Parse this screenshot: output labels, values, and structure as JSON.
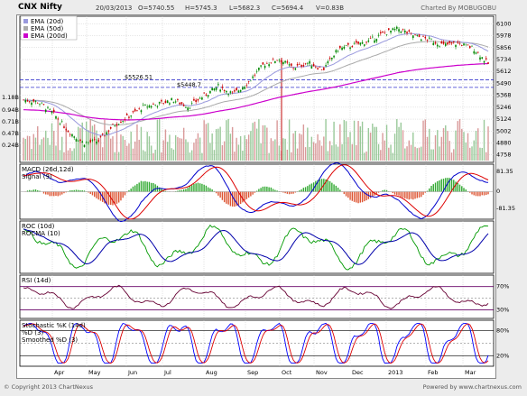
{
  "header": {
    "symbol": "CNX Nifty",
    "date": "20/03/2013",
    "open": "O=5740.55",
    "high": "H=5745.3",
    "low": "L=5682.3",
    "close": "C=5694.4",
    "volume": "V=0.83B",
    "credit": "Charted By MOBUGOBU"
  },
  "footer": {
    "copyright": "© Copyright 2013 ChartNexus",
    "powered": "Powered by www.chartnexus.com"
  },
  "colors": {
    "ema20": "#9999dd",
    "ema50": "#aaaaaa",
    "ema200": "#cc00cc",
    "macd": "#0000cc",
    "signal": "#dd0000",
    "roc": "#009900",
    "rocma": "#0000aa",
    "rsi": "#660033",
    "k": "#0000ff",
    "d": "#dd0000"
  },
  "chart_data": [
    {
      "type": "candlestick",
      "legend": [
        "EMA (20d)",
        "EMA (50d)",
        "EMA (200d)"
      ],
      "months": [
        "Apr",
        "May",
        "Jun",
        "Jul",
        "Aug",
        "Sep",
        "Oct",
        "Nov",
        "Dec",
        "2013",
        "Feb",
        "Mar"
      ],
      "price_ticks": [
        "6100",
        "5978",
        "5856",
        "5734",
        "5612",
        "5490",
        "5368",
        "5246",
        "5124",
        "5002",
        "4880",
        "4758"
      ],
      "volume_ticks": [
        "1.18B",
        "0.94B",
        "0.71B",
        "0.47B",
        "0.24B"
      ],
      "ylim": [
        4700,
        6140
      ],
      "support_lines": [
        {
          "label": "$5526.51",
          "value": 5526.51
        },
        {
          "label": "$5448.7",
          "value": 5448.7
        }
      ],
      "close_approx": [
        5320,
        5300,
        5180,
        5000,
        4880,
        4900,
        5060,
        5150,
        5250,
        5280,
        5320,
        5250,
        5360,
        5460,
        5380,
        5500,
        5680,
        5740,
        5650,
        5700,
        5630,
        5840,
        5880,
        5920,
        6000,
        6050,
        5980,
        5940,
        5880,
        5900,
        5850,
        5690
      ],
      "ema200_approx": [
        5220,
        5215,
        5200,
        5180,
        5150,
        5130,
        5120,
        5115,
        5120,
        5130,
        5145,
        5155,
        5175,
        5205,
        5230,
        5265,
        5305,
        5345,
        5375,
        5405,
        5430,
        5460,
        5495,
        5530,
        5565,
        5600,
        5625,
        5645,
        5660,
        5675,
        5685,
        5692
      ]
    },
    {
      "type": "line",
      "title": "MACD (26d,12d)",
      "series": [
        {
          "name": "MACD (26d,12d)"
        },
        {
          "name": "Signal (9)"
        }
      ],
      "ticks": [
        "81.35",
        "0",
        "-81.35"
      ]
    },
    {
      "type": "line",
      "title": "ROC (10d)",
      "series": [
        {
          "name": "ROC (10d)"
        },
        {
          "name": "ROCMA (10)"
        }
      ]
    },
    {
      "type": "line",
      "title": "RSI (14d)",
      "levels": [
        70,
        50,
        30
      ],
      "ticks": [
        "70%",
        "30%"
      ]
    },
    {
      "type": "line",
      "title": "Stochastic %K (14d)",
      "series": [
        {
          "name": "%D (3)"
        },
        {
          "name": "Smoothed %D (3)"
        }
      ],
      "levels": [
        80,
        50,
        20
      ],
      "ticks": [
        "80%",
        "20%"
      ]
    }
  ]
}
